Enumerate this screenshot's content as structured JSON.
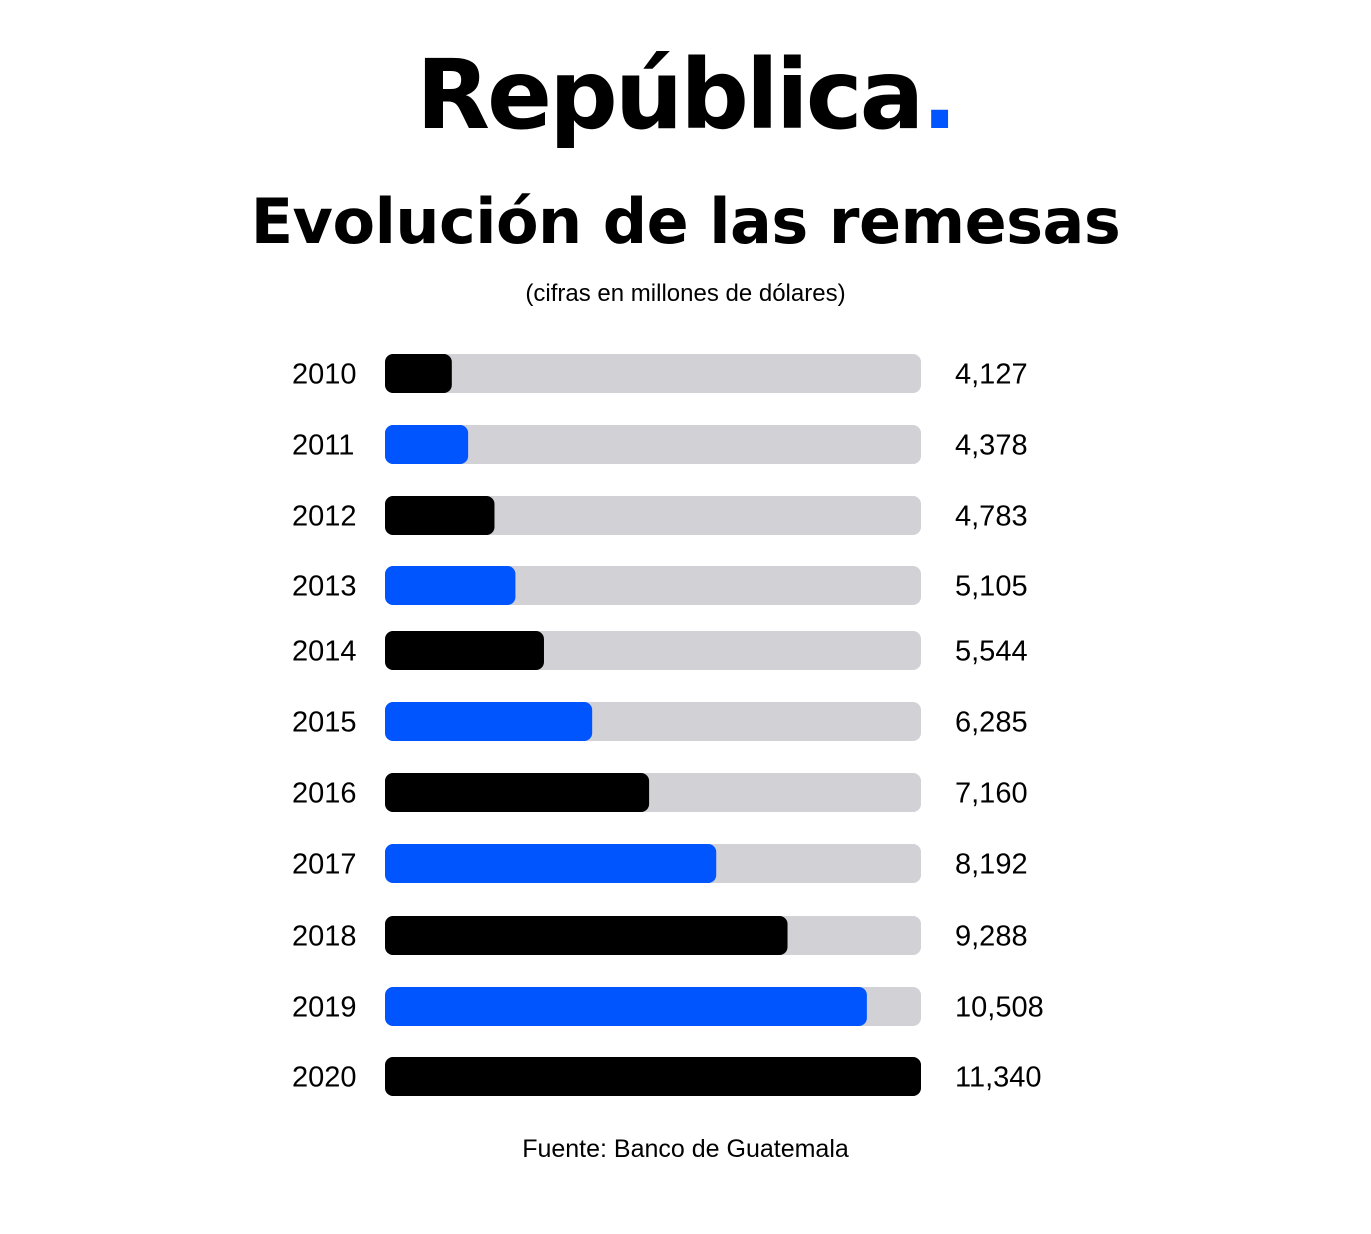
{
  "brand": {
    "name": "República",
    "dot": "."
  },
  "colors": {
    "accent_blue": "#0055ff",
    "black": "#000000",
    "track_gray": "#d1d1d6"
  },
  "chart_data": {
    "type": "bar",
    "orientation": "horizontal",
    "title": "Evolución de las remesas",
    "subtitle": "(cifras en millones de dólares)",
    "categories": [
      "2010",
      "2011",
      "2012",
      "2013",
      "2014",
      "2015",
      "2016",
      "2017",
      "2018",
      "2019",
      "2020"
    ],
    "values": [
      4127,
      4378,
      4783,
      5105,
      5544,
      6285,
      7160,
      8192,
      9288,
      10508,
      11340
    ],
    "value_labels": [
      "4,127",
      "4,378",
      "4,783",
      "5,105",
      "5,544",
      "6,285",
      "7,160",
      "8,192",
      "9,288",
      "10,508",
      "11,340"
    ],
    "bar_colors": [
      "#000000",
      "#0055ff",
      "#000000",
      "#0055ff",
      "#000000",
      "#0055ff",
      "#000000",
      "#0055ff",
      "#000000",
      "#0055ff",
      "#000000"
    ],
    "xlim": [
      3100,
      11340
    ],
    "grid": false,
    "legend": "none",
    "source": "Fuente: Banco de Guatemala"
  }
}
